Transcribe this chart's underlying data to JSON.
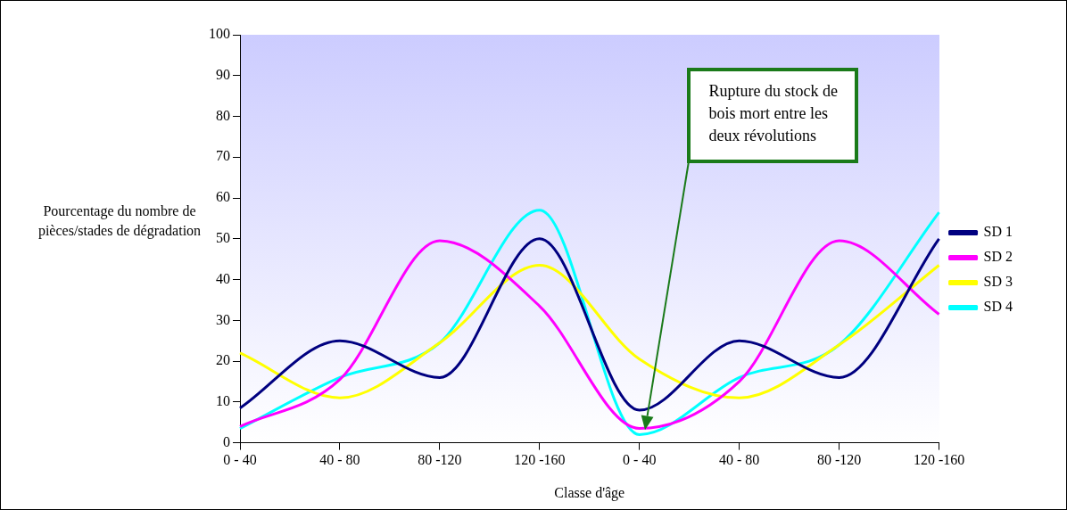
{
  "chart_data": {
    "type": "line",
    "xlabel": "Classe d'âge",
    "ylabel": "Pourcentage du nombre de pièces/stades de dégradation",
    "categories": [
      "0 - 40",
      "40 - 80",
      "80 -120",
      "120 -160",
      "0 - 40",
      "40 - 80",
      "80 -120",
      "120 -160"
    ],
    "series": [
      {
        "name": "SD 1",
        "color": "#000080",
        "values": [
          8.5,
          25,
          16,
          50,
          8,
          25,
          16,
          50
        ]
      },
      {
        "name": "SD 2",
        "color": "#ff00ff",
        "values": [
          4,
          15.5,
          49.5,
          33.5,
          3.5,
          15,
          49.5,
          31.5
        ]
      },
      {
        "name": "SD 3",
        "color": "#ffff00",
        "values": [
          22,
          11,
          24.5,
          43.5,
          20.5,
          11,
          24,
          43.5
        ]
      },
      {
        "name": "SD 4",
        "color": "#00ffff",
        "values": [
          3.5,
          16,
          24.5,
          57,
          2,
          16,
          24,
          56.5
        ]
      }
    ],
    "ylim": [
      0,
      100
    ],
    "yticks": [
      0,
      10,
      20,
      30,
      40,
      50,
      60,
      70,
      80,
      90,
      100
    ],
    "grid": false,
    "legend": "right",
    "marker": "none",
    "line_style": "solid",
    "annotations": [
      "Rupture du stock de bois mort entre les deux révolutions"
    ]
  }
}
